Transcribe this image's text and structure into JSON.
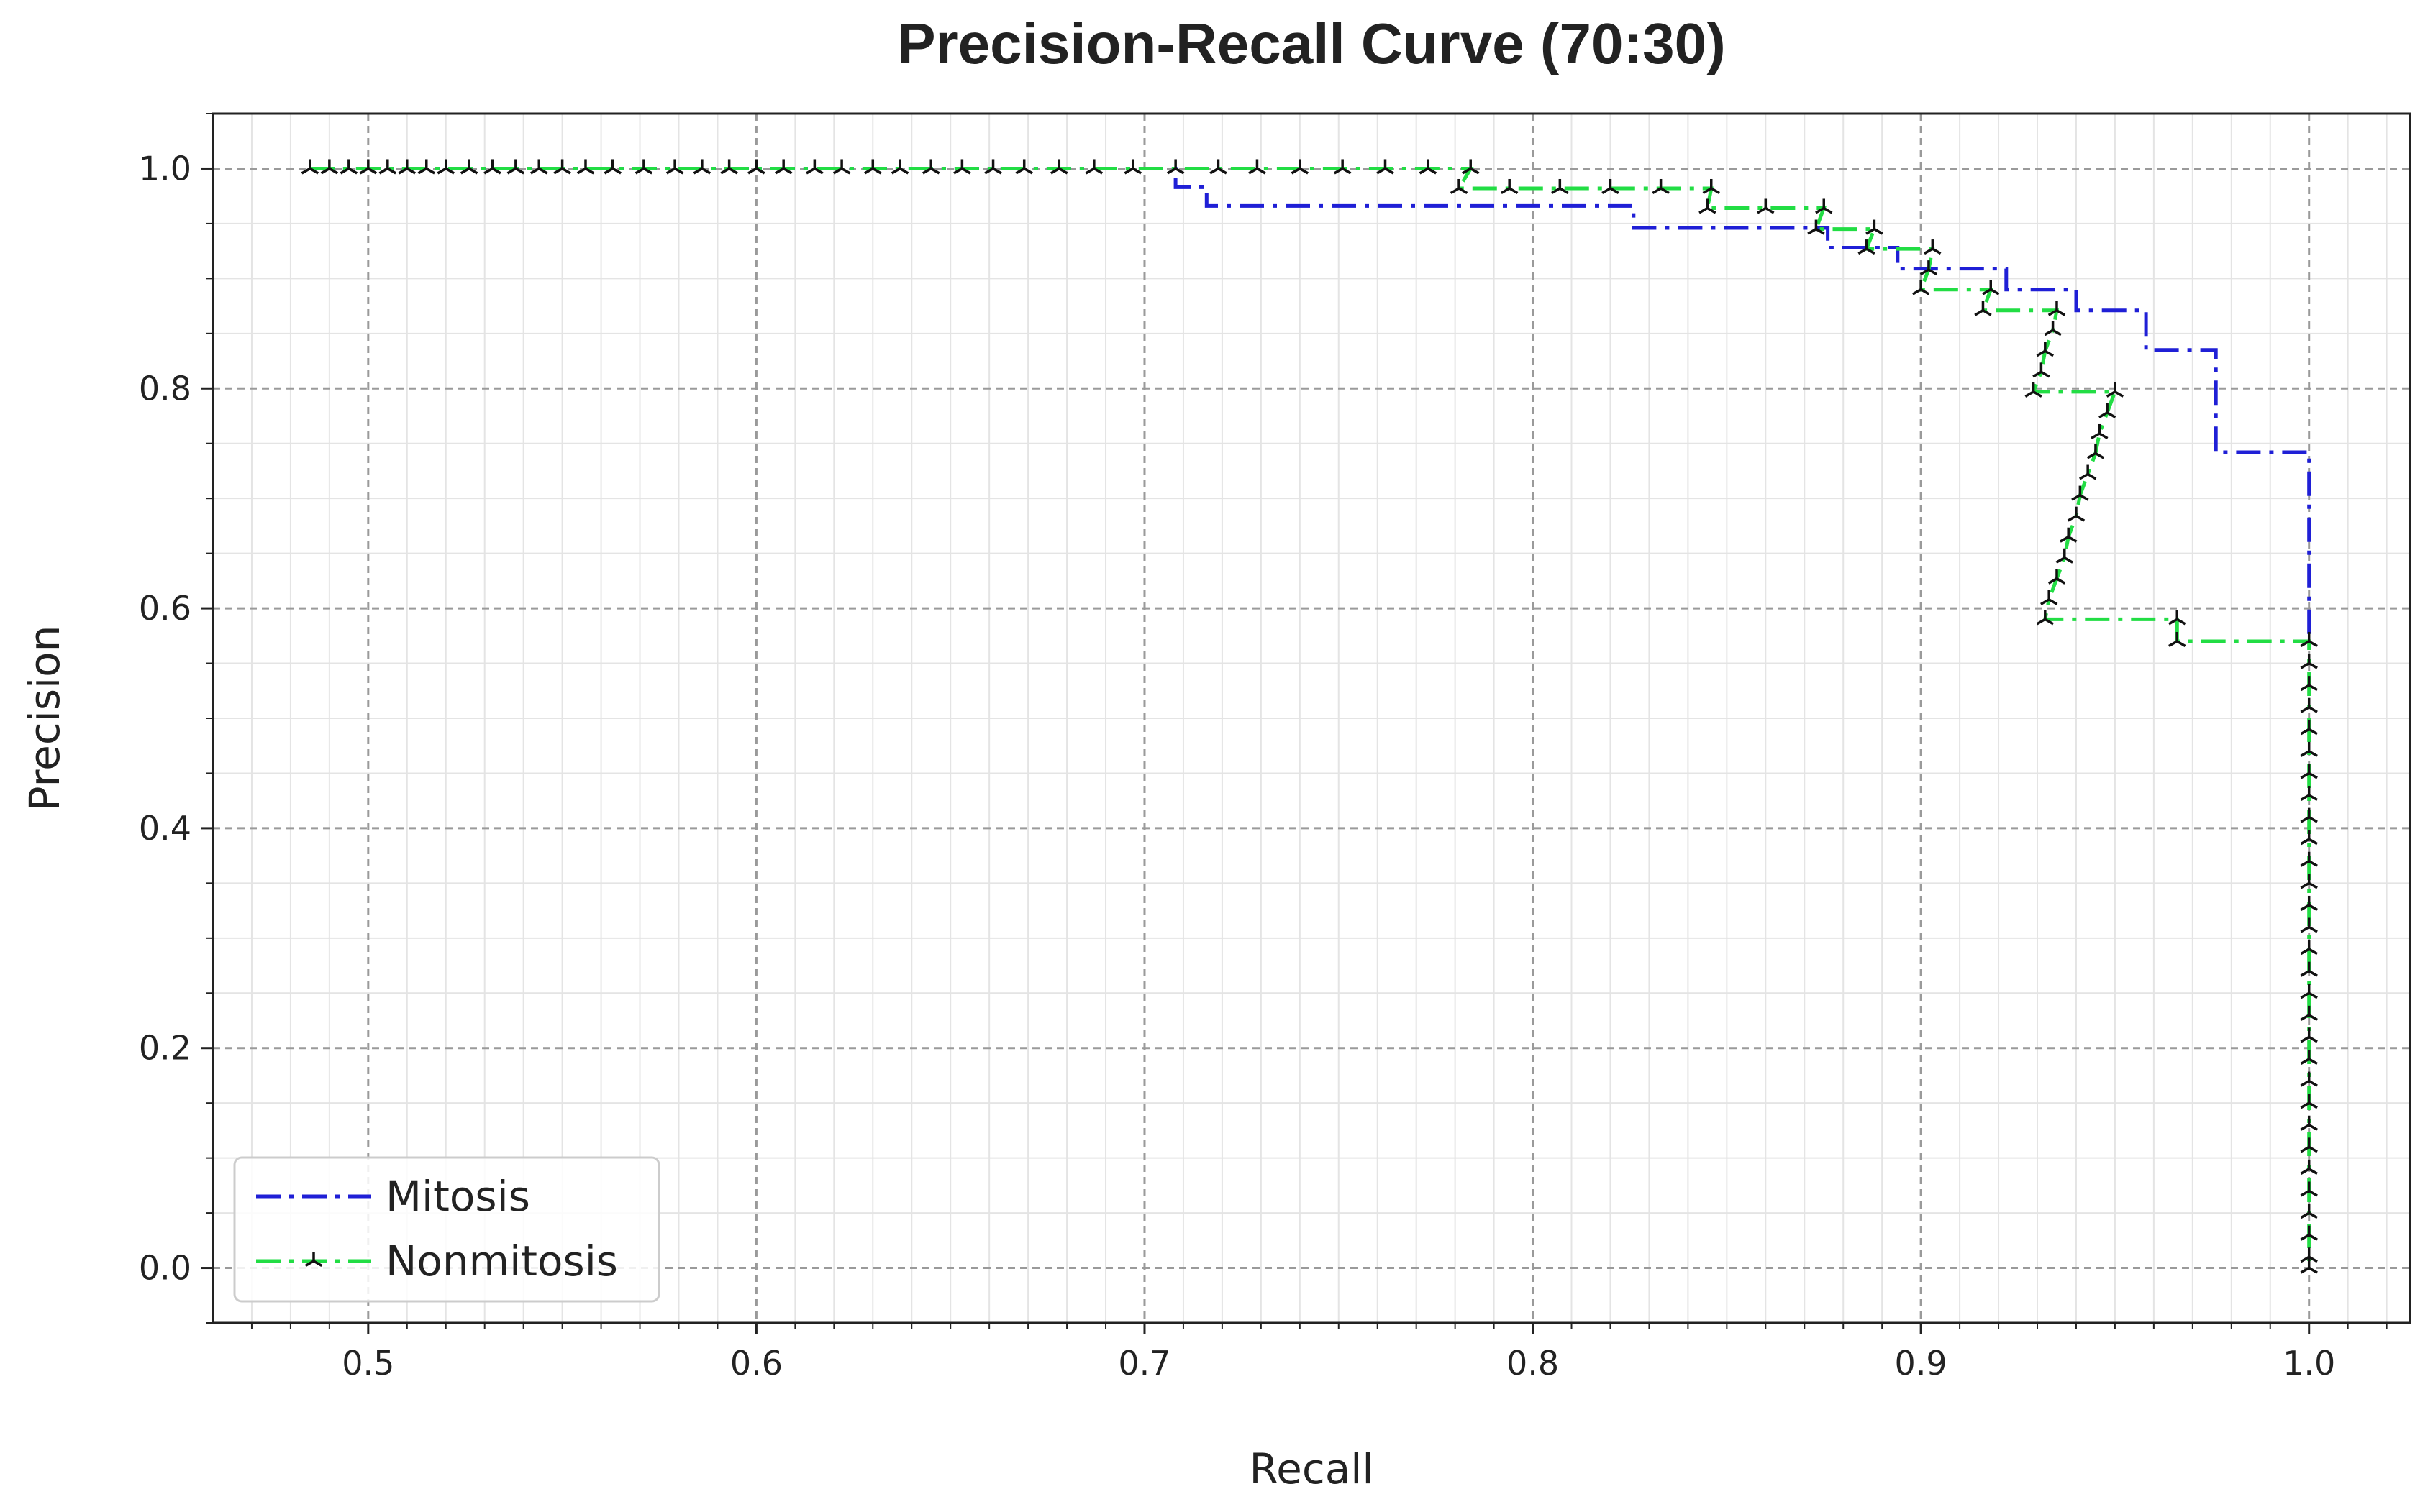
{
  "chart_data": {
    "type": "line",
    "title": "Precision-Recall Curve (70:30)",
    "xlabel": "Recall",
    "ylabel": "Precision",
    "xlim": [
      0.46,
      1.026
    ],
    "ylim": [
      -0.05,
      1.05
    ],
    "x_ticks": [
      0.5,
      0.6,
      0.7,
      0.8,
      0.9,
      1.0
    ],
    "x_tick_labels": [
      "0.5",
      "0.6",
      "0.7",
      "0.8",
      "0.9",
      "1.0"
    ],
    "y_ticks": [
      0.0,
      0.2,
      0.4,
      0.6,
      0.8,
      1.0
    ],
    "y_tick_labels": [
      "0.0",
      "0.2",
      "0.4",
      "0.6",
      "0.8",
      "1.0"
    ],
    "grid": true,
    "minor_grid": true,
    "legend_position": "lower-left",
    "series": [
      {
        "name": "Mitosis",
        "color": "#1f1fd6",
        "style": "dashdot",
        "markers": false,
        "points": [
          [
            0.485,
            1.0
          ],
          [
            0.708,
            1.0
          ],
          [
            0.708,
            0.983
          ],
          [
            0.716,
            0.983
          ],
          [
            0.716,
            0.966
          ],
          [
            0.826,
            0.966
          ],
          [
            0.826,
            0.946
          ],
          [
            0.876,
            0.946
          ],
          [
            0.876,
            0.928
          ],
          [
            0.894,
            0.928
          ],
          [
            0.894,
            0.909
          ],
          [
            0.922,
            0.909
          ],
          [
            0.922,
            0.89
          ],
          [
            0.94,
            0.89
          ],
          [
            0.94,
            0.871
          ],
          [
            0.958,
            0.871
          ],
          [
            0.958,
            0.835
          ],
          [
            0.976,
            0.835
          ],
          [
            0.976,
            0.742
          ],
          [
            1.0,
            0.742
          ],
          [
            1.0,
            0.57
          ]
        ]
      },
      {
        "name": "Nonmitosis",
        "color": "#22dd44",
        "style": "dashdot",
        "markers": true,
        "marker_color": "#111111",
        "points": [
          [
            0.485,
            1.0
          ],
          [
            0.49,
            1.0
          ],
          [
            0.495,
            1.0
          ],
          [
            0.5,
            1.0
          ],
          [
            0.505,
            1.0
          ],
          [
            0.51,
            1.0
          ],
          [
            0.515,
            1.0
          ],
          [
            0.52,
            1.0
          ],
          [
            0.526,
            1.0
          ],
          [
            0.532,
            1.0
          ],
          [
            0.538,
            1.0
          ],
          [
            0.544,
            1.0
          ],
          [
            0.55,
            1.0
          ],
          [
            0.556,
            1.0
          ],
          [
            0.563,
            1.0
          ],
          [
            0.571,
            1.0
          ],
          [
            0.579,
            1.0
          ],
          [
            0.586,
            1.0
          ],
          [
            0.593,
            1.0
          ],
          [
            0.6,
            1.0
          ],
          [
            0.607,
            1.0
          ],
          [
            0.615,
            1.0
          ],
          [
            0.622,
            1.0
          ],
          [
            0.63,
            1.0
          ],
          [
            0.637,
            1.0
          ],
          [
            0.645,
            1.0
          ],
          [
            0.653,
            1.0
          ],
          [
            0.661,
            1.0
          ],
          [
            0.669,
            1.0
          ],
          [
            0.678,
            1.0
          ],
          [
            0.687,
            1.0
          ],
          [
            0.697,
            1.0
          ],
          [
            0.708,
            1.0
          ],
          [
            0.719,
            1.0
          ],
          [
            0.729,
            1.0
          ],
          [
            0.74,
            1.0
          ],
          [
            0.751,
            1.0
          ],
          [
            0.762,
            1.0
          ],
          [
            0.773,
            1.0
          ],
          [
            0.784,
            1.0
          ],
          [
            0.781,
            0.982
          ],
          [
            0.794,
            0.982
          ],
          [
            0.807,
            0.982
          ],
          [
            0.82,
            0.982
          ],
          [
            0.833,
            0.982
          ],
          [
            0.846,
            0.982
          ],
          [
            0.845,
            0.964
          ],
          [
            0.86,
            0.964
          ],
          [
            0.875,
            0.964
          ],
          [
            0.873,
            0.945
          ],
          [
            0.888,
            0.945
          ],
          [
            0.886,
            0.927
          ],
          [
            0.903,
            0.927
          ],
          [
            0.902,
            0.908
          ],
          [
            0.9,
            0.89
          ],
          [
            0.918,
            0.89
          ],
          [
            0.916,
            0.871
          ],
          [
            0.935,
            0.871
          ],
          [
            0.934,
            0.853
          ],
          [
            0.932,
            0.834
          ],
          [
            0.931,
            0.815
          ],
          [
            0.929,
            0.797
          ],
          [
            0.95,
            0.797
          ],
          [
            0.948,
            0.778
          ],
          [
            0.946,
            0.759
          ],
          [
            0.945,
            0.741
          ],
          [
            0.943,
            0.722
          ],
          [
            0.941,
            0.703
          ],
          [
            0.94,
            0.684
          ],
          [
            0.938,
            0.665
          ],
          [
            0.937,
            0.646
          ],
          [
            0.935,
            0.627
          ],
          [
            0.933,
            0.608
          ],
          [
            0.932,
            0.59
          ],
          [
            0.966,
            0.59
          ],
          [
            0.966,
            0.57
          ],
          [
            1.0,
            0.57
          ],
          [
            1.0,
            0.55
          ],
          [
            1.0,
            0.53
          ],
          [
            1.0,
            0.51
          ],
          [
            1.0,
            0.49
          ],
          [
            1.0,
            0.47
          ],
          [
            1.0,
            0.45
          ],
          [
            1.0,
            0.43
          ],
          [
            1.0,
            0.41
          ],
          [
            1.0,
            0.39
          ],
          [
            1.0,
            0.37
          ],
          [
            1.0,
            0.35
          ],
          [
            1.0,
            0.33
          ],
          [
            1.0,
            0.31
          ],
          [
            1.0,
            0.29
          ],
          [
            1.0,
            0.27
          ],
          [
            1.0,
            0.25
          ],
          [
            1.0,
            0.23
          ],
          [
            1.0,
            0.21
          ],
          [
            1.0,
            0.19
          ],
          [
            1.0,
            0.17
          ],
          [
            1.0,
            0.15
          ],
          [
            1.0,
            0.13
          ],
          [
            1.0,
            0.11
          ],
          [
            1.0,
            0.09
          ],
          [
            1.0,
            0.07
          ],
          [
            1.0,
            0.05
          ],
          [
            1.0,
            0.03
          ],
          [
            1.0,
            0.01
          ],
          [
            1.0,
            0.0
          ]
        ]
      }
    ]
  }
}
